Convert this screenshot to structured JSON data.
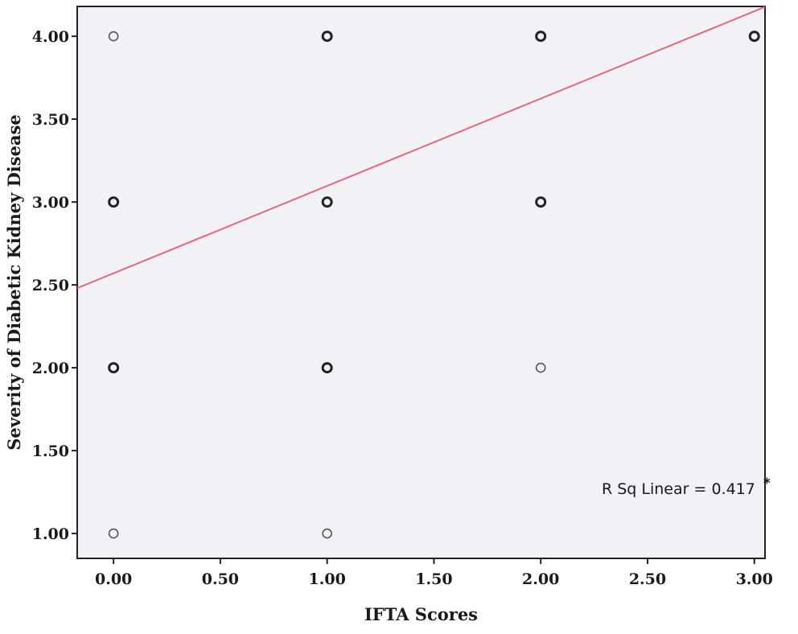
{
  "chart_data": {
    "type": "scatter",
    "title": "",
    "xlabel": "IFTA Scores",
    "ylabel": "Severity of Diabetic Kidney Disease",
    "xlim": [
      -0.17,
      3.05
    ],
    "ylim": [
      0.85,
      4.18
    ],
    "x_ticks": [
      "0.00",
      "0.50",
      "1.00",
      "1.50",
      "2.00",
      "2.50",
      "3.00"
    ],
    "y_ticks": [
      "1.00",
      "1.50",
      "2.00",
      "2.50",
      "3.00",
      "3.50",
      "4.00"
    ],
    "grid": false,
    "points": [
      {
        "x": 0,
        "y": 4,
        "weight": "light"
      },
      {
        "x": 0,
        "y": 3,
        "weight": "bold"
      },
      {
        "x": 0,
        "y": 2,
        "weight": "bold"
      },
      {
        "x": 0,
        "y": 1,
        "weight": "light"
      },
      {
        "x": 1,
        "y": 4,
        "weight": "bold"
      },
      {
        "x": 1,
        "y": 3,
        "weight": "bold"
      },
      {
        "x": 1,
        "y": 2,
        "weight": "bold"
      },
      {
        "x": 1,
        "y": 1,
        "weight": "light"
      },
      {
        "x": 2,
        "y": 4,
        "weight": "bold"
      },
      {
        "x": 2,
        "y": 3,
        "weight": "bold"
      },
      {
        "x": 2,
        "y": 2,
        "weight": "light"
      },
      {
        "x": 3,
        "y": 4,
        "weight": "bold"
      }
    ],
    "fit_line": {
      "intercept": 2.57,
      "slope": 0.527,
      "color": "#e8657a"
    },
    "annotation": {
      "text": "R Sq Linear = 0.417",
      "marker": "*"
    },
    "colors": {
      "plot_background": "#f2f1f6",
      "point_stroke": "#222222",
      "axis": "#222222"
    }
  }
}
